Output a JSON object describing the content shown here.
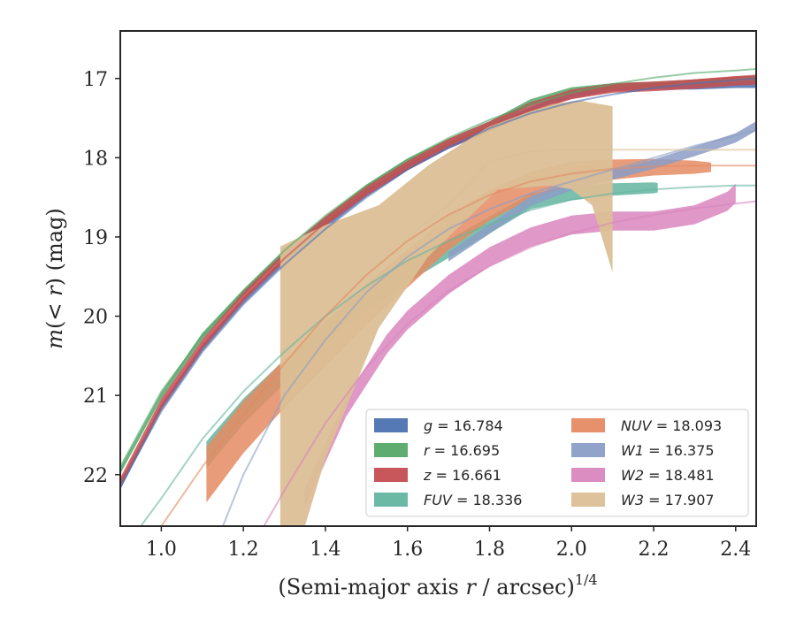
{
  "chart_data": {
    "type": "line",
    "title": "",
    "xlabel": "(Semi-major axis r / arcsec)^1/4",
    "xlabel_parts": {
      "main": "(Semi-major axis ",
      "var": "r",
      "rest": " / arcsec)",
      "sup": "1/4"
    },
    "ylabel": "m(< r) (mag)",
    "ylabel_parts": {
      "m": "m",
      "open": "(",
      "lt": "< ",
      "r": "r",
      "close": ")",
      "unit": " (mag)"
    },
    "xlim": [
      0.9,
      2.45
    ],
    "ylim": [
      22.65,
      16.4
    ],
    "y_inverted": true,
    "xticks": [
      "1.0",
      "1.2",
      "1.4",
      "1.6",
      "1.8",
      "2.0",
      "2.2",
      "2.4"
    ],
    "xtick_values": [
      1.0,
      1.2,
      1.4,
      1.6,
      1.8,
      2.0,
      2.2,
      2.4
    ],
    "yticks": [
      "17",
      "18",
      "19",
      "20",
      "21",
      "22"
    ],
    "ytick_values": [
      17,
      18,
      19,
      20,
      21,
      22
    ],
    "grid": false,
    "legend": {
      "placement": "lower-right",
      "columns": 2
    },
    "series": [
      {
        "name": "g = 16.784",
        "band": "g",
        "label_var": "g",
        "label_val": " = 16.784",
        "color": "#4c72b0",
        "band_x": [
          0.9,
          1.0,
          1.1,
          1.2,
          1.3,
          1.4,
          1.5,
          1.6,
          1.7,
          1.8,
          1.9,
          2.0,
          2.1,
          2.2,
          2.3,
          2.4,
          2.45
        ],
        "band_y": [
          22.15,
          21.15,
          20.4,
          19.8,
          19.3,
          18.85,
          18.45,
          18.12,
          17.85,
          17.63,
          17.4,
          17.2,
          17.12,
          17.1,
          17.1,
          17.08,
          17.08
        ],
        "band_half_width": 0.04,
        "fit_x": [
          0.9,
          1.0,
          1.1,
          1.2,
          1.3,
          1.4,
          1.5,
          1.6,
          1.7,
          1.8,
          1.9,
          2.0,
          2.1,
          2.2,
          2.3,
          2.4,
          2.45
        ],
        "fit_y": [
          22.15,
          21.2,
          20.45,
          19.85,
          19.35,
          18.9,
          18.5,
          18.15,
          17.87,
          17.63,
          17.44,
          17.3,
          17.2,
          17.12,
          17.06,
          17.02,
          17.0
        ]
      },
      {
        "name": "r = 16.695",
        "band": "r",
        "label_var": "r",
        "label_val": " = 16.695",
        "color": "#55a868",
        "band_x": [
          0.9,
          1.0,
          1.1,
          1.2,
          1.3,
          1.4,
          1.5,
          1.6,
          1.7,
          1.8,
          1.9,
          2.0,
          2.1,
          2.2,
          2.3,
          2.4,
          2.45
        ],
        "band_y": [
          21.95,
          21.0,
          20.25,
          19.7,
          19.2,
          18.78,
          18.38,
          18.05,
          17.8,
          17.58,
          17.3,
          17.15,
          17.1,
          17.08,
          17.05,
          17.02,
          17.0
        ],
        "band_half_width": 0.04,
        "fit_x": [
          0.9,
          1.0,
          1.1,
          1.2,
          1.3,
          1.4,
          1.5,
          1.6,
          1.7,
          1.8,
          1.9,
          2.0,
          2.1,
          2.2,
          2.3,
          2.4,
          2.45
        ],
        "fit_y": [
          21.9,
          20.95,
          20.25,
          19.68,
          19.17,
          18.73,
          18.35,
          18.02,
          17.75,
          17.52,
          17.33,
          17.18,
          17.07,
          16.99,
          16.93,
          16.9,
          16.88
        ]
      },
      {
        "name": "z = 16.661",
        "band": "z",
        "label_var": "z",
        "label_val": " = 16.661",
        "color": "#c44e52",
        "band_x": [
          0.9,
          1.0,
          1.1,
          1.2,
          1.3,
          1.4,
          1.5,
          1.6,
          1.7,
          1.8,
          1.9,
          2.0,
          2.1,
          2.2,
          2.3,
          2.4,
          2.45
        ],
        "band_y": [
          22.1,
          21.1,
          20.35,
          19.75,
          19.25,
          18.8,
          18.42,
          18.1,
          17.82,
          17.6,
          17.36,
          17.2,
          17.12,
          17.1,
          17.07,
          17.03,
          17.02
        ],
        "band_half_width": 0.06,
        "fit_x": [
          0.9,
          1.0,
          1.1,
          1.2,
          1.3,
          1.4,
          1.5,
          1.6,
          1.7,
          1.8,
          1.9,
          2.0,
          2.1,
          2.2,
          2.3,
          2.4,
          2.45
        ],
        "fit_y": [
          22.1,
          21.15,
          20.4,
          19.8,
          19.27,
          18.82,
          18.43,
          18.1,
          17.82,
          17.6,
          17.4,
          17.25,
          17.15,
          17.08,
          17.02,
          16.98,
          16.96
        ]
      },
      {
        "name": "FUV = 18.336",
        "band": "FUV",
        "label_var": "FUV",
        "label_val": " = 18.336",
        "color": "#64b5a0",
        "band_x": [
          1.11,
          1.2,
          1.3,
          1.4,
          1.5,
          1.6,
          1.7,
          1.8,
          1.9,
          2.0,
          2.1,
          2.2,
          2.21
        ],
        "band_y": [
          21.75,
          21.2,
          20.7,
          20.2,
          19.8,
          19.45,
          19.15,
          18.85,
          18.55,
          18.45,
          18.4,
          18.38,
          18.38
        ],
        "band_half_width_start": 0.17,
        "band_half_width_end": 0.06,
        "fit_x": [
          0.95,
          1.0,
          1.1,
          1.2,
          1.3,
          1.4,
          1.5,
          1.6,
          1.7,
          1.8,
          1.9,
          2.0,
          2.1,
          2.2,
          2.3,
          2.4,
          2.45
        ],
        "fit_y": [
          22.65,
          22.3,
          21.55,
          20.95,
          20.45,
          20.0,
          19.62,
          19.3,
          19.05,
          18.84,
          18.66,
          18.53,
          18.45,
          18.4,
          18.37,
          18.35,
          18.35
        ]
      },
      {
        "name": "NUV = 18.093",
        "band": "NUV",
        "label_var": "NUV",
        "label_val": " = 18.093",
        "color": "#e58b63",
        "band_x": [
          1.11,
          1.2,
          1.3,
          1.4,
          1.5,
          1.6,
          1.7,
          1.8,
          1.9,
          2.0,
          2.1,
          2.2,
          2.3,
          2.34
        ],
        "band_y": [
          22.0,
          21.4,
          20.85,
          20.35,
          19.85,
          19.4,
          18.95,
          18.6,
          18.35,
          18.2,
          18.15,
          18.12,
          18.12,
          18.12
        ],
        "band_half_width_start": 0.35,
        "band_half_width_end": 0.06,
        "fit_x": [
          1.0,
          1.1,
          1.2,
          1.3,
          1.4,
          1.5,
          1.6,
          1.7,
          1.8,
          1.9,
          2.0,
          2.1,
          2.2,
          2.3,
          2.4,
          2.45
        ],
        "fit_y": [
          22.65,
          21.9,
          21.25,
          20.6,
          20.0,
          19.48,
          19.05,
          18.72,
          18.47,
          18.3,
          18.2,
          18.14,
          18.11,
          18.1,
          18.1,
          18.1
        ]
      },
      {
        "name": "W1 = 16.375",
        "band": "W1",
        "label_var": "W1",
        "label_val": " = 16.375",
        "color": "#8c9ec6",
        "band_x": [
          1.7,
          1.8,
          1.9,
          2.0,
          2.1,
          2.2,
          2.3,
          2.4,
          2.45
        ],
        "band_y": [
          19.25,
          18.9,
          18.55,
          18.35,
          18.22,
          18.08,
          17.92,
          17.75,
          17.6
        ],
        "band_half_width": 0.06,
        "fit_x": [
          1.15,
          1.2,
          1.3,
          1.4,
          1.5,
          1.6,
          1.7,
          1.8,
          1.9,
          2.0,
          2.1,
          2.2,
          2.3,
          2.4,
          2.45
        ],
        "fit_y": [
          22.65,
          22.0,
          21.0,
          20.3,
          19.7,
          19.25,
          18.9,
          18.65,
          18.45,
          18.3,
          18.15,
          18.0,
          17.85,
          17.72,
          17.65
        ]
      },
      {
        "name": "W2 = 18.481",
        "band": "W2",
        "label_var": "W2",
        "label_val": " = 18.481",
        "color": "#d986bd",
        "band_x": [
          1.35,
          1.45,
          1.55,
          1.6,
          1.7,
          1.8,
          1.9,
          2.0,
          2.1,
          2.2,
          2.3,
          2.38,
          2.4
        ],
        "band_y": [
          22.3,
          21.15,
          20.35,
          20.05,
          19.6,
          19.25,
          19.0,
          18.85,
          18.8,
          18.8,
          18.72,
          18.55,
          18.45
        ],
        "band_half_width": 0.12,
        "fit_x": [
          1.25,
          1.3,
          1.4,
          1.5,
          1.6,
          1.7,
          1.8,
          1.9,
          2.0,
          2.1,
          2.2,
          2.3,
          2.4,
          2.45
        ],
        "fit_y": [
          22.65,
          22.2,
          21.35,
          20.65,
          20.1,
          19.68,
          19.37,
          19.13,
          18.95,
          18.82,
          18.72,
          18.64,
          18.58,
          18.55
        ]
      },
      {
        "name": "W3 = 17.907",
        "band": "W3",
        "label_var": "W3",
        "label_val": " = 17.907",
        "color": "#dbbf96",
        "band_upper_x": [
          1.29,
          1.4,
          1.53,
          1.65,
          1.8,
          1.95,
          2.02,
          2.1
        ],
        "band_upper_y": [
          19.12,
          18.85,
          18.6,
          18.1,
          17.6,
          17.32,
          17.28,
          17.35
        ],
        "band_lower_x": [
          1.29,
          1.29,
          1.35,
          1.4,
          1.53,
          1.65,
          1.82,
          1.95,
          2.0,
          2.05,
          2.1
        ],
        "band_lower_y": [
          22.65,
          22.65,
          22.65,
          21.8,
          20.15,
          19.25,
          18.4,
          18.35,
          18.4,
          18.6,
          19.45
        ],
        "fit_x": [
          1.6,
          1.7,
          1.8,
          1.9,
          2.0,
          2.1,
          2.2,
          2.3,
          2.4,
          2.45
        ],
        "fit_y": [
          19.0,
          18.6,
          18.05,
          17.92,
          17.9,
          17.9,
          17.9,
          17.9,
          17.9,
          17.9
        ]
      }
    ]
  }
}
